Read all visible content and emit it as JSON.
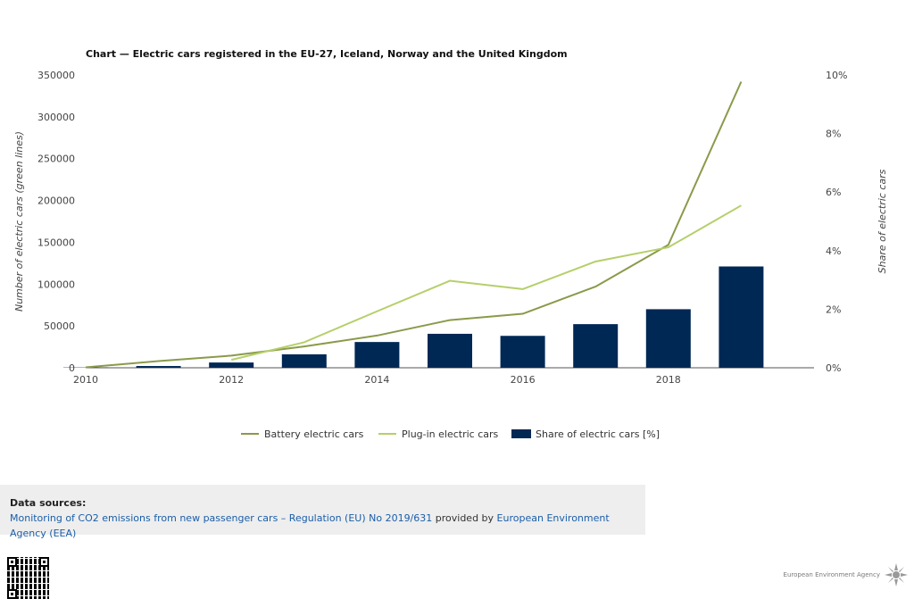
{
  "chart_data": {
    "type": "bar",
    "title": "Chart — Electric cars registered in the EU-27, Iceland, Norway and the United Kingdom",
    "x": [
      2010,
      2011,
      2012,
      2013,
      2014,
      2015,
      2016,
      2017,
      2018,
      2019
    ],
    "xticks": [
      2010,
      2012,
      2014,
      2016,
      2018
    ],
    "ylabel_left": "Number of electric cars (green lines)",
    "ylabel_right": "Share of electric cars",
    "ylim_left": [
      0,
      350000
    ],
    "ylim_right": [
      0,
      10
    ],
    "yticks_left": [
      "0",
      "50000",
      "100000",
      "150000",
      "200000",
      "250000",
      "300000",
      "350000"
    ],
    "yticks_right": [
      "0%",
      "2%",
      "4%",
      "6%",
      "8%",
      "10%"
    ],
    "series": [
      {
        "name": "Battery electric cars",
        "type": "line",
        "axis": "left",
        "color": "#8a9a4a",
        "values": [
          500,
          8000,
          14500,
          25500,
          38500,
          57000,
          64500,
          97000,
          147000,
          342000
        ]
      },
      {
        "name": "Plug-in electric cars",
        "type": "line",
        "axis": "left",
        "color": "#b5cf6b",
        "values": [
          null,
          null,
          9500,
          30500,
          67500,
          104000,
          94000,
          127000,
          144000,
          194000
        ]
      },
      {
        "name": "Share of electric cars [%]",
        "type": "bar",
        "axis": "right",
        "color": "#002855",
        "values": [
          0.01,
          0.06,
          0.18,
          0.46,
          0.88,
          1.16,
          1.09,
          1.49,
          2.0,
          3.46
        ]
      }
    ],
    "grid": false,
    "legend": "bottom"
  },
  "sources": {
    "title": "Data sources:",
    "link1": "Monitoring of CO2 emissions from new passenger cars – Regulation (EU) No 2019/631",
    "middle": " provided by ",
    "link2": "European Environment Agency (EEA)"
  },
  "footer": {
    "logo_text": "European Environment Agency"
  },
  "colors": {
    "battery": "#8a9a4a",
    "plugin": "#b5cf6b",
    "share": "#002855",
    "link": "#1a5ea8"
  }
}
